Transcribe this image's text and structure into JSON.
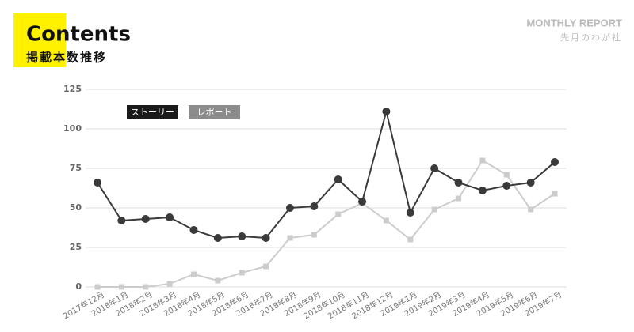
{
  "header": {
    "title": "Contents",
    "subtitle": "掲載本数推移",
    "report": "MONTHLY REPORT",
    "company": "先月のわが社"
  },
  "chart_data": {
    "type": "line",
    "categories": [
      "2017年12月",
      "2018年1月",
      "2018年2月",
      "2018年3月",
      "2018年4月",
      "2018年5月",
      "2018年6月",
      "2018年7月",
      "2018年8月",
      "2018年9月",
      "2018年10月",
      "2018年11月",
      "2018年12月",
      "2019年1月",
      "2019年2月",
      "2019年3月",
      "2019年4月",
      "2019年5月",
      "2019年6月",
      "2019年7月"
    ],
    "series": [
      {
        "name": "ストーリー",
        "color": "#3a3a3a",
        "legend_color": "#1a1a1a",
        "marker": "circle",
        "values": [
          66,
          42,
          43,
          44,
          36,
          31,
          32,
          31,
          50,
          51,
          68,
          54,
          111,
          47,
          75,
          66,
          61,
          64,
          66,
          79
        ]
      },
      {
        "name": "レポート",
        "color": "#cccccc",
        "legend_color": "#8c8c8c",
        "marker": "square",
        "values": [
          0,
          0,
          0,
          2,
          8,
          4,
          9,
          13,
          31,
          33,
          46,
          53,
          42,
          30,
          49,
          56,
          80,
          71,
          49,
          59
        ]
      }
    ],
    "ylim": [
      0,
      125
    ],
    "yticks": [
      0,
      25,
      50,
      75,
      100,
      125
    ],
    "grid": true
  }
}
